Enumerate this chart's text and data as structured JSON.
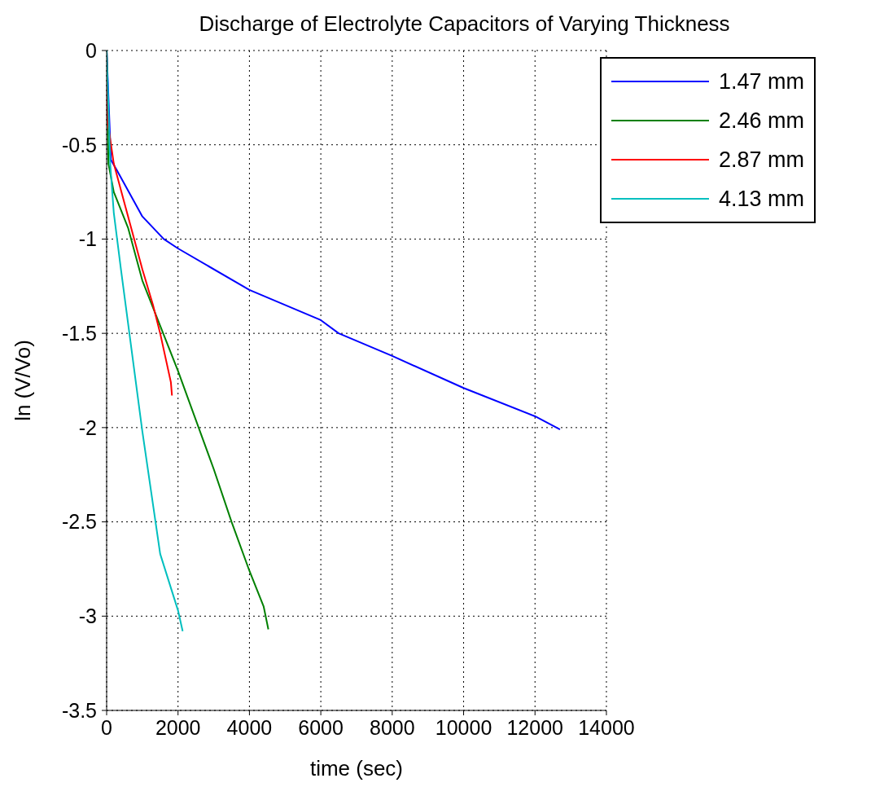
{
  "chart_data": {
    "type": "line",
    "title": "Discharge of Electrolyte Capacitors of Varying Thickness",
    "xlabel": "time (sec)",
    "ylabel": "ln (V/Vo)",
    "xlim": [
      0,
      14000
    ],
    "xticks": [
      0,
      2000,
      4000,
      6000,
      8000,
      10000,
      12000,
      14000
    ],
    "ylim": [
      -3.5,
      0
    ],
    "yticks": [
      -3.5,
      -3,
      -2.5,
      -2,
      -1.5,
      -1,
      -0.5,
      0
    ],
    "grid": true,
    "legend": "top right",
    "line_style": "solid",
    "marker": "none",
    "series": [
      {
        "name": "1.47 mm",
        "color": "#0000ff",
        "x": [
          0,
          120,
          300,
          1000,
          1600,
          2000,
          4000,
          6000,
          6500,
          8000,
          10000,
          12000,
          12700
        ],
        "values": [
          0,
          -0.58,
          -0.64,
          -0.88,
          -1.0,
          -1.05,
          -1.27,
          -1.43,
          -1.5,
          -1.62,
          -1.79,
          -1.94,
          -2.01
        ]
      },
      {
        "name": "2.46 mm",
        "color": "#008000",
        "x": [
          0,
          50,
          200,
          600,
          1000,
          1500,
          2000,
          3000,
          3500,
          4000,
          4400,
          4530
        ],
        "values": [
          0,
          -0.6,
          -0.75,
          -0.94,
          -1.22,
          -1.46,
          -1.7,
          -2.22,
          -2.5,
          -2.76,
          -2.95,
          -3.07
        ]
      },
      {
        "name": "2.87 mm",
        "color": "#ff0000",
        "x": [
          0,
          30,
          200,
          500,
          1000,
          1300,
          1500,
          1800,
          1830
        ],
        "values": [
          0,
          -0.38,
          -0.6,
          -0.81,
          -1.16,
          -1.35,
          -1.5,
          -1.76,
          -1.83
        ]
      },
      {
        "name": "4.13 mm",
        "color": "#00bfbf",
        "x": [
          0,
          100,
          200,
          400,
          1000,
          1500,
          2000,
          2130
        ],
        "values": [
          0,
          -0.6,
          -0.86,
          -1.16,
          -2.02,
          -2.67,
          -2.97,
          -3.08
        ]
      }
    ]
  }
}
